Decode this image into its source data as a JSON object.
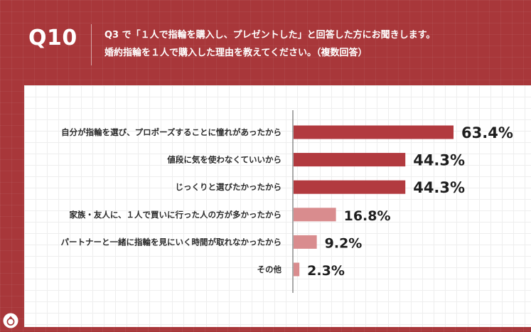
{
  "header": {
    "question_number": "Q10",
    "question_line1": "Q3 で「１人で指輪を購入し、プレゼントした」と回答した方にお聞きします。",
    "question_line2": "婚約指輪を１人で購入した理由を教えてください。（複数回答）"
  },
  "colors": {
    "background": "#a8373a",
    "bar_strong": "#b23a3f",
    "bar_light": "#d98c8e",
    "axis": "#555555"
  },
  "chart_data": {
    "type": "bar",
    "orientation": "horizontal",
    "categories": [
      "自分が指輪を選び、プロポーズすることに憧れがあったから",
      "値段に気を使わなくていいから",
      "じっくりと選びたかったから",
      "家族・友人に、１人で買いに行った人の方が多かったから",
      "パートナーと一緒に指輪を見にいく時間が取れなかったから",
      "その他"
    ],
    "values": [
      63.4,
      44.3,
      44.3,
      16.8,
      9.2,
      2.3
    ],
    "value_labels": [
      "63.4%",
      "44.3%",
      "44.3%",
      "16.8%",
      "9.2%",
      "2.3%"
    ],
    "title": "",
    "xlabel": "",
    "ylabel": "",
    "xlim": [
      0,
      100
    ],
    "grid": false,
    "legend": "none"
  },
  "logo": {
    "icon": "ring-logo-icon"
  }
}
